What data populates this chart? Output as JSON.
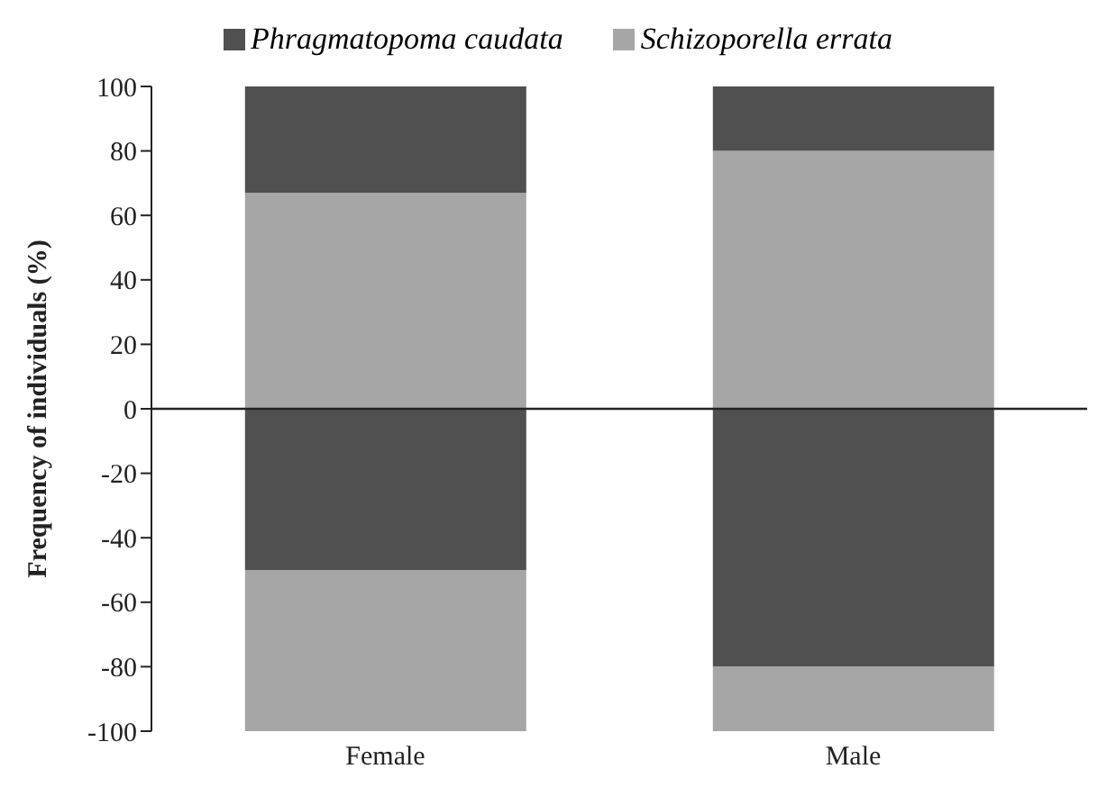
{
  "chart_data": {
    "type": "bar",
    "stacked": true,
    "categories": [
      "Female",
      "Male"
    ],
    "ylabel": "Frequency of individuals (%)",
    "ylim": [
      -100,
      100
    ],
    "yticks": [
      -100,
      -80,
      -60,
      -40,
      -20,
      0,
      20,
      40,
      60,
      80,
      100
    ],
    "legend": "top",
    "series": [
      {
        "name": "Schizoporella errata",
        "color": "#a6a6a6",
        "values": [
          67,
          80
        ]
      },
      {
        "name": "Phragmatopoma caudata",
        "color": "#505050",
        "values": [
          33,
          20
        ]
      },
      {
        "color": "#505050",
        "values": [
          -50,
          -80
        ]
      },
      {
        "color": "#a6a6a6",
        "values": [
          -50,
          -20
        ]
      }
    ]
  }
}
